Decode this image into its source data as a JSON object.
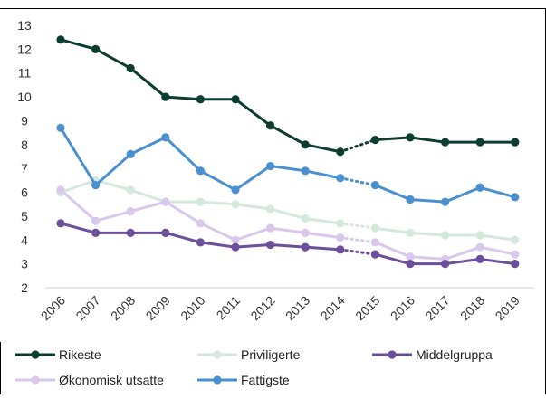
{
  "chart_data": {
    "type": "line",
    "title": "",
    "xlabel": "",
    "ylabel": "",
    "ylim": [
      2,
      13
    ],
    "y_ticks": [
      2,
      3,
      4,
      5,
      6,
      7,
      8,
      9,
      10,
      11,
      12,
      13
    ],
    "grid": false,
    "legend_position": "bottom",
    "categories": [
      "2006",
      "2007",
      "2008",
      "2009",
      "2010",
      "2011",
      "2012",
      "2013",
      "2014",
      "2015",
      "2016",
      "2017",
      "2018",
      "2019"
    ],
    "dashed_segment": [
      "2014",
      "2015"
    ],
    "series": [
      {
        "name": "Rikeste",
        "color": "#0b3d30",
        "values": [
          12.4,
          12.0,
          11.2,
          10.0,
          9.9,
          9.9,
          8.8,
          8.0,
          7.7,
          8.2,
          8.3,
          8.1,
          8.1,
          8.1
        ]
      },
      {
        "name": "Fattigste",
        "color": "#4a90d0",
        "values": [
          8.7,
          6.3,
          7.6,
          8.3,
          6.9,
          6.1,
          7.1,
          6.9,
          6.6,
          6.3,
          5.7,
          5.6,
          6.2,
          5.8
        ]
      },
      {
        "name": "Priviligerte",
        "color": "#d5e8dc",
        "values": [
          6.0,
          6.5,
          6.1,
          5.6,
          5.6,
          5.5,
          5.3,
          4.9,
          4.7,
          4.5,
          4.3,
          4.2,
          4.2,
          4.0
        ]
      },
      {
        "name": "Økonomisk utsatte",
        "color": "#d9c8ec",
        "values": [
          6.1,
          4.8,
          5.2,
          5.6,
          4.7,
          4.0,
          4.5,
          4.3,
          4.1,
          3.9,
          3.3,
          3.2,
          3.7,
          3.4
        ]
      },
      {
        "name": "Middelgruppa",
        "color": "#6b4f9a",
        "values": [
          4.7,
          4.3,
          4.3,
          4.3,
          3.9,
          3.7,
          3.8,
          3.7,
          3.6,
          3.4,
          3.0,
          3.0,
          3.2,
          3.0
        ]
      }
    ],
    "legend": [
      {
        "name": "Rikeste",
        "color": "#0b3d30"
      },
      {
        "name": "Priviligerte",
        "color": "#d5e8dc"
      },
      {
        "name": "Middelgruppa",
        "color": "#6b4f9a"
      },
      {
        "name": "Økonomisk utsatte",
        "color": "#d9c8ec"
      },
      {
        "name": "Fattigste",
        "color": "#4a90d0"
      }
    ]
  }
}
